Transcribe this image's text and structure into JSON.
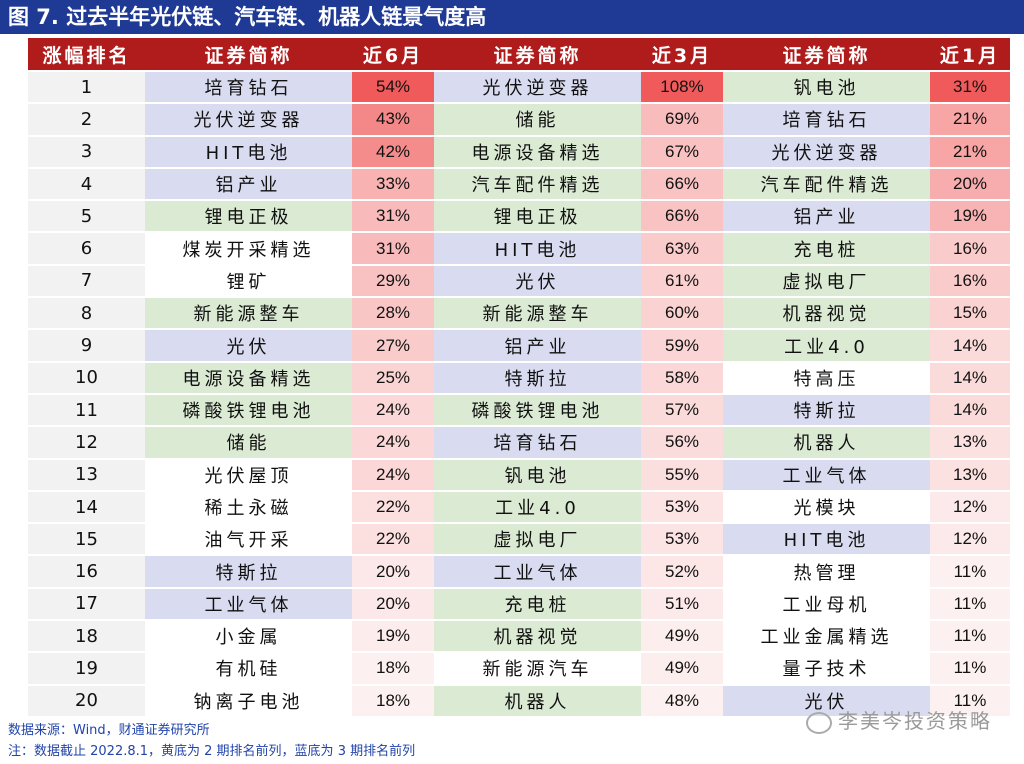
{
  "title": "图 7. 过去半年光伏链、汽车链、机器人链景气度高",
  "headers": [
    "涨幅排名",
    "证券简称",
    "近6月",
    "证券简称",
    "近3月",
    "证券简称",
    "近1月"
  ],
  "rows": [
    {
      "rank": "1",
      "n6": "培育钻石",
      "c6": "blue",
      "p6": "54%",
      "n3": "光伏逆变器",
      "c3": "blue",
      "p3": "108%",
      "n1": "钒电池",
      "c1": "green",
      "p1": "31%"
    },
    {
      "rank": "2",
      "n6": "光伏逆变器",
      "c6": "blue",
      "p6": "43%",
      "n3": "储能",
      "c3": "green",
      "p3": "69%",
      "n1": "培育钻石",
      "c1": "blue",
      "p1": "21%"
    },
    {
      "rank": "3",
      "n6": "HIT电池",
      "c6": "blue",
      "p6": "42%",
      "n3": "电源设备精选",
      "c3": "green",
      "p3": "67%",
      "n1": "光伏逆变器",
      "c1": "blue",
      "p1": "21%"
    },
    {
      "rank": "4",
      "n6": "铝产业",
      "c6": "blue",
      "p6": "33%",
      "n3": "汽车配件精选",
      "c3": "green",
      "p3": "66%",
      "n1": "汽车配件精选",
      "c1": "green",
      "p1": "20%"
    },
    {
      "rank": "5",
      "n6": "锂电正极",
      "c6": "green",
      "p6": "31%",
      "n3": "锂电正极",
      "c3": "green",
      "p3": "66%",
      "n1": "铝产业",
      "c1": "blue",
      "p1": "19%"
    },
    {
      "rank": "6",
      "n6": "煤炭开采精选",
      "c6": "white",
      "p6": "31%",
      "n3": "HIT电池",
      "c3": "blue",
      "p3": "63%",
      "n1": "充电桩",
      "c1": "green",
      "p1": "16%"
    },
    {
      "rank": "7",
      "n6": "锂矿",
      "c6": "white",
      "p6": "29%",
      "n3": "光伏",
      "c3": "blue",
      "p3": "61%",
      "n1": "虚拟电厂",
      "c1": "green",
      "p1": "16%"
    },
    {
      "rank": "8",
      "n6": "新能源整车",
      "c6": "green",
      "p6": "28%",
      "n3": "新能源整车",
      "c3": "green",
      "p3": "60%",
      "n1": "机器视觉",
      "c1": "green",
      "p1": "15%"
    },
    {
      "rank": "9",
      "n6": "光伏",
      "c6": "blue",
      "p6": "27%",
      "n3": "铝产业",
      "c3": "blue",
      "p3": "59%",
      "n1": "工业4.0",
      "c1": "green",
      "p1": "14%"
    },
    {
      "rank": "10",
      "n6": "电源设备精选",
      "c6": "green",
      "p6": "25%",
      "n3": "特斯拉",
      "c3": "blue",
      "p3": "58%",
      "n1": "特高压",
      "c1": "white",
      "p1": "14%"
    },
    {
      "rank": "11",
      "n6": "磷酸铁锂电池",
      "c6": "green",
      "p6": "24%",
      "n3": "磷酸铁锂电池",
      "c3": "green",
      "p3": "57%",
      "n1": "特斯拉",
      "c1": "blue",
      "p1": "14%"
    },
    {
      "rank": "12",
      "n6": "储能",
      "c6": "green",
      "p6": "24%",
      "n3": "培育钻石",
      "c3": "blue",
      "p3": "56%",
      "n1": "机器人",
      "c1": "green",
      "p1": "13%"
    },
    {
      "rank": "13",
      "n6": "光伏屋顶",
      "c6": "white",
      "p6": "24%",
      "n3": "钒电池",
      "c3": "green",
      "p3": "55%",
      "n1": "工业气体",
      "c1": "blue",
      "p1": "13%"
    },
    {
      "rank": "14",
      "n6": "稀土永磁",
      "c6": "white",
      "p6": "22%",
      "n3": "工业4.0",
      "c3": "green",
      "p3": "53%",
      "n1": "光模块",
      "c1": "white",
      "p1": "12%"
    },
    {
      "rank": "15",
      "n6": "油气开采",
      "c6": "white",
      "p6": "22%",
      "n3": "虚拟电厂",
      "c3": "green",
      "p3": "53%",
      "n1": "HIT电池",
      "c1": "blue",
      "p1": "12%"
    },
    {
      "rank": "16",
      "n6": "特斯拉",
      "c6": "blue",
      "p6": "20%",
      "n3": "工业气体",
      "c3": "blue",
      "p3": "52%",
      "n1": "热管理",
      "c1": "white",
      "p1": "11%"
    },
    {
      "rank": "17",
      "n6": "工业气体",
      "c6": "blue",
      "p6": "20%",
      "n3": "充电桩",
      "c3": "green",
      "p3": "51%",
      "n1": "工业母机",
      "c1": "white",
      "p1": "11%"
    },
    {
      "rank": "18",
      "n6": "小金属",
      "c6": "white",
      "p6": "19%",
      "n3": "机器视觉",
      "c3": "green",
      "p3": "49%",
      "n1": "工业金属精选",
      "c1": "white",
      "p1": "11%"
    },
    {
      "rank": "19",
      "n6": "有机硅",
      "c6": "white",
      "p6": "18%",
      "n3": "新能源汽车",
      "c3": "white",
      "p3": "49%",
      "n1": "量子技术",
      "c1": "white",
      "p1": "11%"
    },
    {
      "rank": "20",
      "n6": "钠离子电池",
      "c6": "white",
      "p6": "18%",
      "n3": "机器人",
      "c3": "green",
      "p3": "48%",
      "n1": "光伏",
      "c1": "blue",
      "p1": "11%"
    }
  ],
  "footer": {
    "source": "数据来源：Wind，财通证券研究所",
    "note": "注：数据截止 2022.8.1，黄底为 2 期排名前列，蓝底为 3 期排名前列"
  },
  "watermark": "李美岑投资策略",
  "colors": {
    "header": "#b01c1c",
    "title": "#1f3a94",
    "blue": "#d9dcf0",
    "green": "#dbead3",
    "heat_max": "#f05a5a",
    "heat_min": "#fdf0f0"
  }
}
